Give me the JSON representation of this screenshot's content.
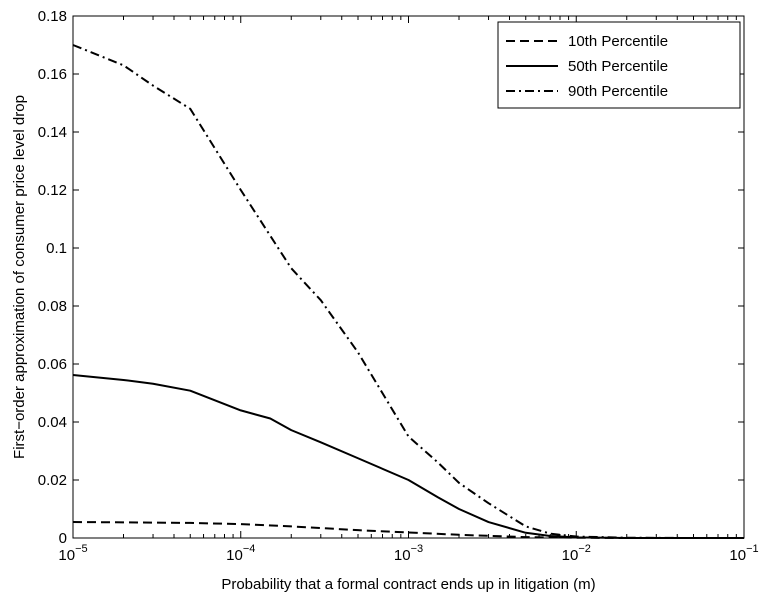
{
  "chart_data": {
    "type": "line",
    "title": "",
    "xlabel": "Probability that a formal contract ends up in litigation (m)",
    "ylabel": "First−order approximation of consumer price level drop",
    "xscale": "log",
    "xlim": [
      1e-05,
      0.1
    ],
    "ylim": [
      0,
      0.18
    ],
    "grid": false,
    "legend_position": "top-right",
    "x_ticks": [
      {
        "base": "10",
        "exp": "−5"
      },
      {
        "base": "10",
        "exp": "−4"
      },
      {
        "base": "10",
        "exp": "−3"
      },
      {
        "base": "10",
        "exp": "−2"
      },
      {
        "base": "10",
        "exp": "−1"
      }
    ],
    "y_ticks": [
      "0",
      "0.02",
      "0.04",
      "0.06",
      "0.08",
      "0.1",
      "0.12",
      "0.14",
      "0.16",
      "0.18"
    ],
    "series": [
      {
        "name": "10th Percentile",
        "dash": "dashed",
        "x": [
          1e-05,
          2e-05,
          5e-05,
          0.0001,
          0.0002,
          0.0005,
          0.001,
          0.002,
          0.005,
          0.01,
          0.02,
          0.05,
          0.1
        ],
        "y": [
          0.0055,
          0.0054,
          0.0052,
          0.0048,
          0.004,
          0.0027,
          0.0019,
          0.0011,
          0.0003,
          0.0001,
          0.0,
          0.0,
          0.0
        ]
      },
      {
        "name": "50th Percentile",
        "dash": "solid",
        "x": [
          1e-05,
          2e-05,
          3e-05,
          5e-05,
          0.0001,
          0.00015,
          0.0002,
          0.0003,
          0.0005,
          0.001,
          0.0015,
          0.002,
          0.003,
          0.005,
          0.007,
          0.01,
          0.02,
          0.05,
          0.1
        ],
        "y": [
          0.0562,
          0.0545,
          0.0532,
          0.0508,
          0.044,
          0.0412,
          0.0372,
          0.033,
          0.0275,
          0.02,
          0.014,
          0.01,
          0.0055,
          0.0018,
          0.0007,
          0.0002,
          0.0,
          0.0,
          0.0
        ]
      },
      {
        "name": "90th Percentile",
        "dash": "dashdot",
        "x": [
          1e-05,
          2e-05,
          3e-05,
          5e-05,
          0.0001,
          0.0002,
          0.0003,
          0.0005,
          0.001,
          0.0015,
          0.002,
          0.003,
          0.005,
          0.007,
          0.01,
          0.02,
          0.05,
          0.1
        ],
        "y": [
          0.17,
          0.163,
          0.156,
          0.148,
          0.12,
          0.093,
          0.082,
          0.064,
          0.035,
          0.026,
          0.019,
          0.012,
          0.004,
          0.0015,
          0.0005,
          0.0001,
          0.0,
          0.0
        ]
      }
    ]
  }
}
